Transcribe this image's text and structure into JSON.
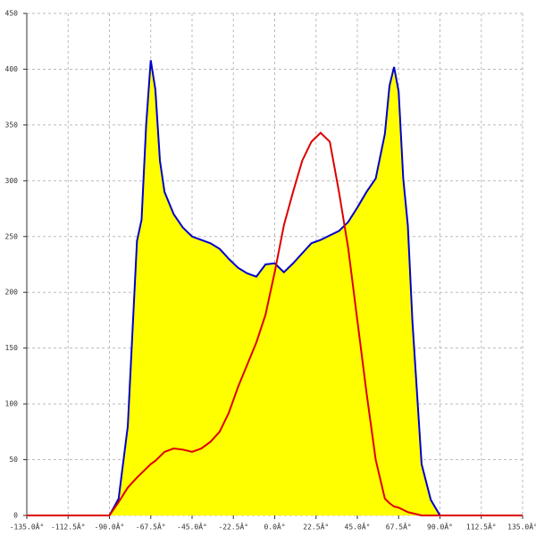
{
  "chart_data": {
    "type": "area",
    "x": [
      -135,
      -90,
      -85,
      -80,
      -75,
      -72.5,
      -70,
      -67.5,
      -65,
      -62.5,
      -60,
      -55,
      -50,
      -45,
      -40,
      -35,
      -30,
      -25,
      -20,
      -15,
      -10,
      -5,
      0,
      5,
      10,
      15,
      20,
      25,
      30,
      35,
      40,
      45,
      50,
      55,
      60,
      62.5,
      65,
      67.5,
      70,
      72.5,
      75,
      80,
      85,
      90,
      135
    ],
    "series": [
      {
        "color": "#0000cc",
        "fill": "#ffff00",
        "values": [
          0,
          0,
          15,
          80,
          246,
          265,
          350,
          408,
          382,
          318,
          290,
          270,
          258,
          250,
          247,
          244,
          239,
          230,
          222,
          217,
          214,
          225,
          226,
          218,
          226,
          235,
          244,
          247,
          251,
          255,
          263,
          276,
          290,
          302,
          342,
          385,
          402,
          380,
          302,
          260,
          174,
          46,
          14,
          0,
          0
        ]
      },
      {
        "color": "#dd0000",
        "values": [
          0,
          0,
          12,
          25,
          34,
          38,
          42,
          46,
          49,
          53,
          57,
          60,
          59,
          57,
          60,
          66,
          75,
          92,
          115,
          135,
          155,
          180,
          218,
          260,
          290,
          318,
          335,
          343,
          335,
          290,
          240,
          175,
          110,
          50,
          15,
          11,
          8,
          7,
          5,
          3,
          2,
          0,
          0,
          0,
          0
        ]
      }
    ],
    "xlim": [
      -135,
      135
    ],
    "xticks": [
      {
        "value": -135,
        "label": "-135.0Â°"
      },
      {
        "value": -112.5,
        "label": "-112.5Â°"
      },
      {
        "value": -90,
        "label": "-90.0Â°"
      },
      {
        "value": -67.5,
        "label": "-67.5Â°"
      },
      {
        "value": -45,
        "label": "-45.0Â°"
      },
      {
        "value": -22.5,
        "label": "-22.5Â°"
      },
      {
        "value": 0,
        "label": "0.0Â°"
      },
      {
        "value": 22.5,
        "label": "22.5Â°"
      },
      {
        "value": 45,
        "label": "45.0Â°"
      },
      {
        "value": 67.5,
        "label": "67.5Â°"
      },
      {
        "value": 90,
        "label": "90.0Â°"
      },
      {
        "value": 112.5,
        "label": "112.5Â°"
      },
      {
        "value": 135,
        "label": "135.0Â°"
      }
    ],
    "ylim": [
      0,
      450
    ],
    "yticks": [
      0,
      50,
      100,
      150,
      200,
      250,
      300,
      350,
      400,
      450
    ],
    "grid": true
  }
}
